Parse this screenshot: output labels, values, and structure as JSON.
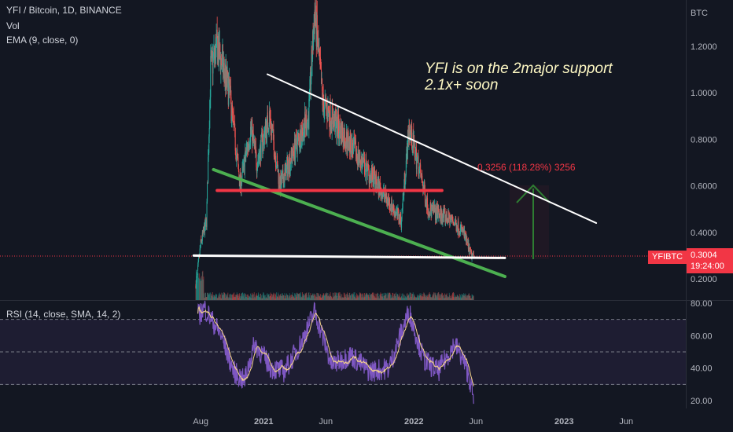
{
  "header": {
    "symbol_line": "YFI / Bitcoin, 1D, BINANCE",
    "vol_label": "Vol",
    "ema_label": "EMA (9, close, 0)"
  },
  "rsi_label": "RSI (14, close, SMA, 14, 2)",
  "price_axis": {
    "unit": "BTC",
    "ticks": [
      "1.2000",
      "1.0000",
      "0.8000",
      "0.6000",
      "0.4000",
      "0.2000"
    ],
    "symbol_tag": "YFIBTC",
    "last_price": "0.3004",
    "countdown": "19:24:00"
  },
  "rsi_axis": {
    "ticks": [
      "80.00",
      "60.00",
      "40.00",
      "20.00"
    ]
  },
  "time_axis": {
    "ticks": [
      "Aug",
      "2021",
      "Jun",
      "2022",
      "Jun",
      "2023",
      "Jun"
    ]
  },
  "annotation": {
    "line1": "YFI is on the 2major support",
    "line2": "2.1x+ soon"
  },
  "measure_label": "0.3256 (118.28%) 3256",
  "colors": {
    "background": "#131722",
    "up": "#26a69a",
    "down": "#ef5350",
    "rsi_line": "#7e57c2",
    "rsi_sma": "#f5d38b",
    "resistance_line": "#ffffff",
    "support_channel": "#4caf50",
    "horizontal_red": "#f23645",
    "target_arrow": "#2e7d32"
  },
  "chart_data": {
    "type": "candlestick",
    "title": "YFI / Bitcoin, 1D, BINANCE",
    "ylabel": "BTC",
    "ylim": [
      0.15,
      1.37
    ],
    "y_ticks": [
      0.2,
      0.4,
      0.6,
      0.8,
      1.0,
      1.2
    ],
    "last_price": 0.3004,
    "x_ticks": [
      "Aug",
      "2021",
      "Jun",
      "2022",
      "Jun",
      "2023",
      "Jun"
    ],
    "price_path_approx": [
      {
        "t": "2020-07-20",
        "close": 0.17
      },
      {
        "t": "2020-08-01",
        "close": 0.35
      },
      {
        "t": "2020-08-15",
        "close": 0.45
      },
      {
        "t": "2020-08-25",
        "close": 1.1
      },
      {
        "t": "2020-09-10",
        "close": 1.2
      },
      {
        "t": "2020-10-10",
        "close": 1.0
      },
      {
        "t": "2020-11-05",
        "close": 0.6
      },
      {
        "t": "2020-12-01",
        "close": 0.85
      },
      {
        "t": "2020-12-15",
        "close": 0.7
      },
      {
        "t": "2021-01-15",
        "close": 0.9
      },
      {
        "t": "2021-02-10",
        "close": 0.6
      },
      {
        "t": "2021-03-15",
        "close": 0.75
      },
      {
        "t": "2021-04-20",
        "close": 0.9
      },
      {
        "t": "2021-05-05",
        "close": 1.35
      },
      {
        "t": "2021-05-25",
        "close": 0.95
      },
      {
        "t": "2021-07-01",
        "close": 0.85
      },
      {
        "t": "2021-08-10",
        "close": 0.75
      },
      {
        "t": "2021-09-15",
        "close": 0.65
      },
      {
        "t": "2021-10-25",
        "close": 0.55
      },
      {
        "t": "2021-12-01",
        "close": 0.45
      },
      {
        "t": "2021-12-20",
        "close": 0.85
      },
      {
        "t": "2022-01-10",
        "close": 0.7
      },
      {
        "t": "2022-02-05",
        "close": 0.5
      },
      {
        "t": "2022-03-01",
        "close": 0.48
      },
      {
        "t": "2022-04-05",
        "close": 0.45
      },
      {
        "t": "2022-05-01",
        "close": 0.4
      },
      {
        "t": "2022-05-20",
        "close": 0.3
      },
      {
        "t": "2022-05-26",
        "close": 0.3004
      }
    ],
    "rsi": {
      "params": "14, close, SMA, 14, 2",
      "ylim": [
        16,
        83
      ],
      "levels": [
        70,
        50,
        30
      ],
      "path_approx": [
        {
          "t": "2020-07-25",
          "v": 72
        },
        {
          "t": "2020-08-10",
          "v": 77
        },
        {
          "t": "2020-09-20",
          "v": 60
        },
        {
          "t": "2020-10-20",
          "v": 38
        },
        {
          "t": "2020-11-15",
          "v": 32
        },
        {
          "t": "2020-12-10",
          "v": 55
        },
        {
          "t": "2021-01-20",
          "v": 40
        },
        {
          "t": "2021-02-20",
          "v": 38
        },
        {
          "t": "2021-04-01",
          "v": 55
        },
        {
          "t": "2021-05-05",
          "v": 75
        },
        {
          "t": "2021-06-15",
          "v": 42
        },
        {
          "t": "2021-08-01",
          "v": 48
        },
        {
          "t": "2021-09-15",
          "v": 38
        },
        {
          "t": "2021-11-01",
          "v": 40
        },
        {
          "t": "2021-12-20",
          "v": 75
        },
        {
          "t": "2022-01-25",
          "v": 45
        },
        {
          "t": "2022-03-01",
          "v": 38
        },
        {
          "t": "2022-04-10",
          "v": 55
        },
        {
          "t": "2022-05-01",
          "v": 45
        },
        {
          "t": "2022-05-15",
          "v": 35
        },
        {
          "t": "2022-05-26",
          "v": 20
        }
      ]
    },
    "drawings": {
      "descending_resistance": {
        "from": {
          "t": "2021-01-10",
          "price": 1.08
        },
        "to": {
          "t": "2023-03-20",
          "price": 0.44
        }
      },
      "support_channel": {
        "from": {
          "t": "2020-09-01",
          "price": 0.67
        },
        "to": {
          "t": "2022-08-10",
          "price": 0.21
        }
      },
      "horizontal_red": {
        "from": {
          "t": "2020-09-10",
          "price": 0.58
        },
        "to": {
          "t": "2022-03-10",
          "price": 0.58
        },
        "price": 0.58
      },
      "horizontal_white": {
        "from": {
          "t": "2020-07-15",
          "price": 0.3
        },
        "to": {
          "t": "2022-08-10",
          "price": 0.29
        }
      },
      "target_range": {
        "from": 0.29,
        "to": 0.6,
        "change": 0.3256,
        "percent": 118.28
      }
    }
  }
}
